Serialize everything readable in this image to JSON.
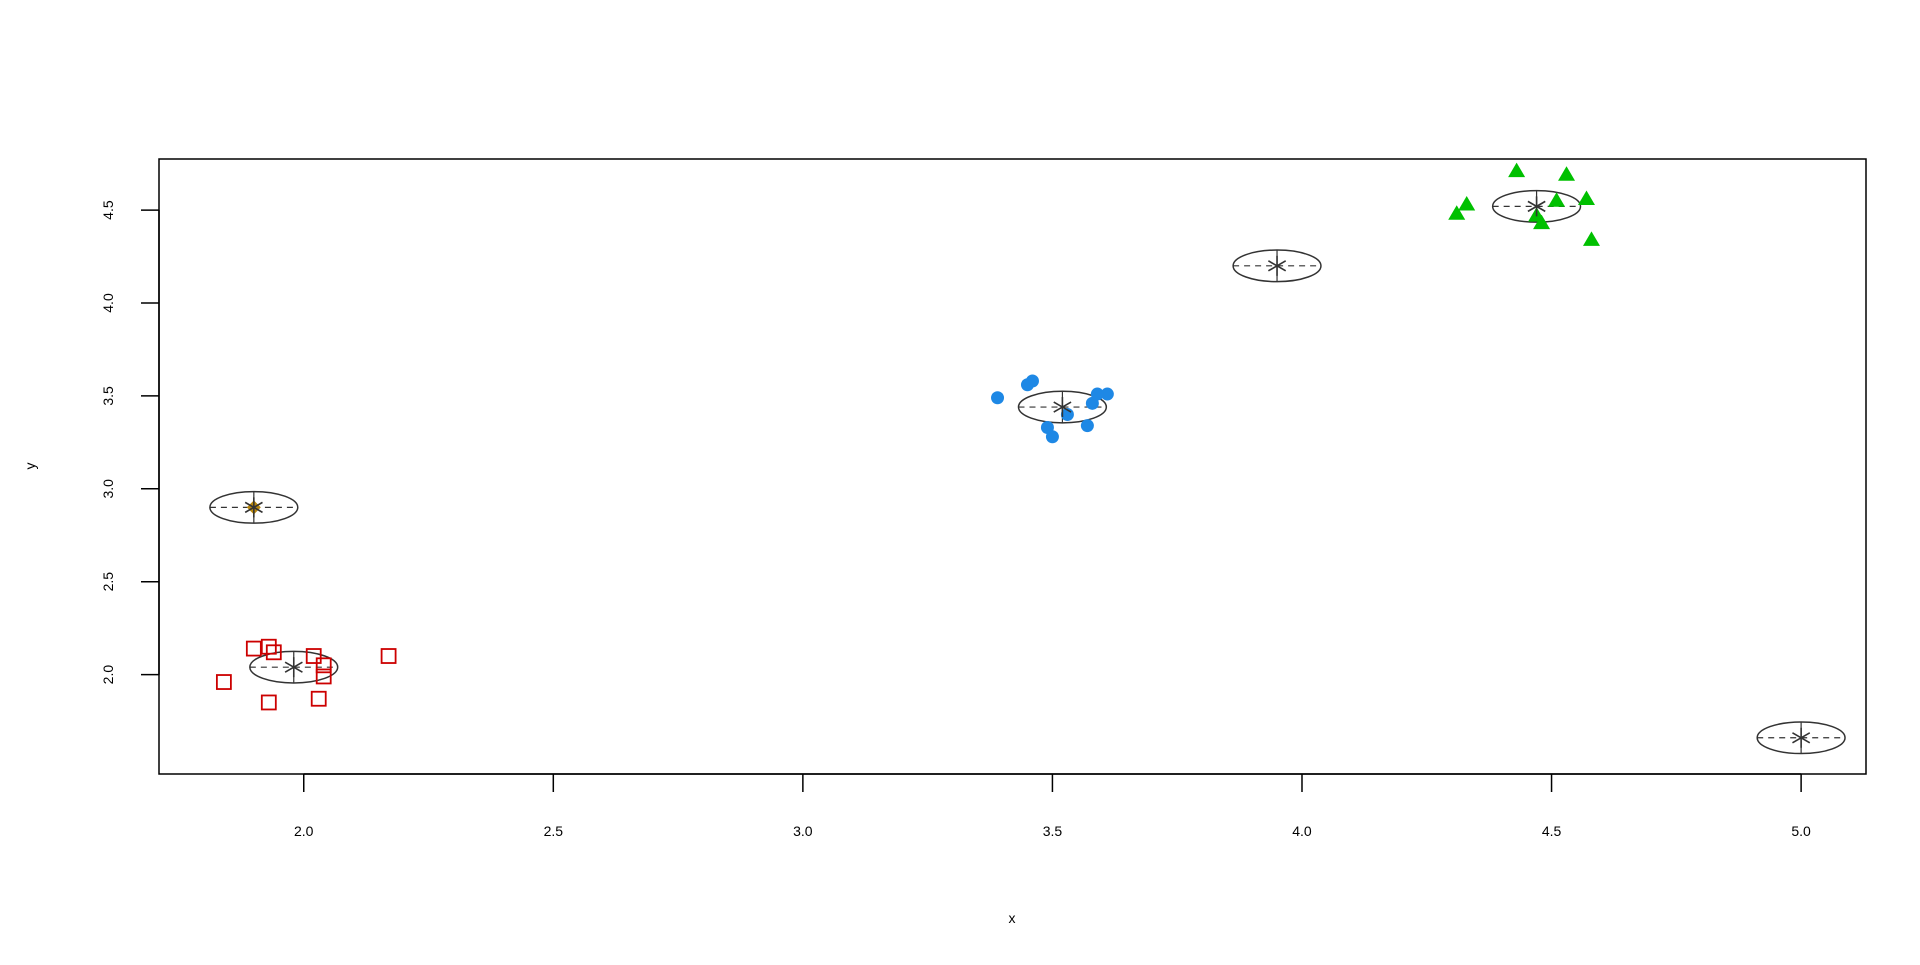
{
  "chart_data": {
    "type": "scatter",
    "title": "",
    "xlabel": "x",
    "ylabel": "y",
    "xlim": [
      1.71,
      5.13
    ],
    "ylim": [
      1.465,
      4.775
    ],
    "x_ticks": [
      2.0,
      2.5,
      3.0,
      3.5,
      4.0,
      4.5,
      5.0
    ],
    "x_tick_labels": [
      "2.0",
      "2.5",
      "3.0",
      "3.5",
      "4.0",
      "4.5",
      "5.0"
    ],
    "y_ticks": [
      2.0,
      2.5,
      3.0,
      3.5,
      4.0,
      4.5
    ],
    "y_tick_labels": [
      "2.0",
      "2.5",
      "3.0",
      "3.5",
      "4.0",
      "4.5"
    ],
    "grid": false,
    "legend": null,
    "series": [
      {
        "marker": "open-square",
        "color": "#cc0000",
        "points": [
          [
            1.84,
            1.96
          ],
          [
            1.9,
            2.14
          ],
          [
            1.93,
            2.15
          ],
          [
            1.94,
            2.12
          ],
          [
            1.93,
            1.85
          ],
          [
            2.02,
            2.1
          ],
          [
            2.03,
            1.87
          ],
          [
            2.04,
            2.05
          ],
          [
            2.04,
            1.99
          ],
          [
            2.17,
            2.1
          ]
        ]
      },
      {
        "marker": "filled-circle",
        "color": "#1e88e5",
        "points": [
          [
            3.39,
            3.49
          ],
          [
            3.45,
            3.56
          ],
          [
            3.46,
            3.58
          ],
          [
            3.49,
            3.33
          ],
          [
            3.5,
            3.28
          ],
          [
            3.53,
            3.4
          ],
          [
            3.57,
            3.34
          ],
          [
            3.58,
            3.46
          ],
          [
            3.59,
            3.51
          ],
          [
            3.61,
            3.51
          ]
        ]
      },
      {
        "marker": "filled-triangle",
        "color": "#00c000",
        "points": [
          [
            4.31,
            4.48
          ],
          [
            4.33,
            4.53
          ],
          [
            4.43,
            4.71
          ],
          [
            4.47,
            4.47
          ],
          [
            4.48,
            4.43
          ],
          [
            4.51,
            4.55
          ],
          [
            4.53,
            4.69
          ],
          [
            4.57,
            4.56
          ],
          [
            4.58,
            4.34
          ]
        ]
      },
      {
        "marker": "filled-diamond",
        "color": "#b8860b",
        "points": [
          [
            1.9,
            2.9
          ]
        ]
      }
    ],
    "centers": [
      {
        "x": 1.98,
        "y": 2.04,
        "rx": 0.088,
        "ry": 0.085
      },
      {
        "x": 3.52,
        "y": 3.44,
        "rx": 0.088,
        "ry": 0.085
      },
      {
        "x": 4.47,
        "y": 4.52,
        "rx": 0.088,
        "ry": 0.085
      },
      {
        "x": 3.95,
        "y": 4.2,
        "rx": 0.088,
        "ry": 0.085
      },
      {
        "x": 1.9,
        "y": 2.9,
        "rx": 0.088,
        "ry": 0.085
      },
      {
        "x": 5.0,
        "y": 1.66,
        "rx": 0.088,
        "ry": 0.085
      }
    ],
    "center_color": "#333333"
  }
}
